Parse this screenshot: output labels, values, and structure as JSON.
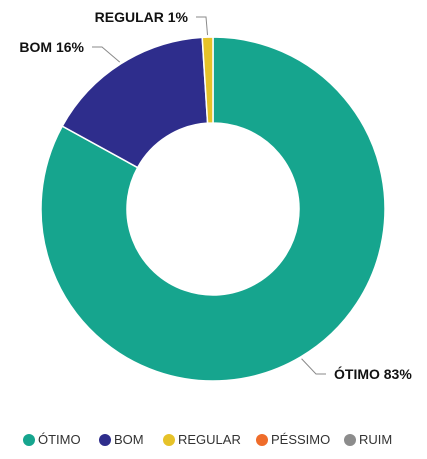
{
  "chart_data": {
    "type": "pie",
    "donut": true,
    "categories": [
      "ÓTIMO",
      "BOM",
      "REGULAR",
      "PÉSSIMO",
      "RUIM"
    ],
    "values": [
      83,
      16,
      1,
      0,
      0
    ],
    "colors": [
      "#16a58e",
      "#2e2d8c",
      "#e6c229",
      "#ef6c2a",
      "#8c8c8c"
    ],
    "slice_labels": [
      "ÓTIMO 83%",
      "BOM 16%",
      "REGULAR 1%",
      "",
      ""
    ],
    "legend": {
      "position": "bottom",
      "items": [
        "ÓTIMO",
        "BOM",
        "REGULAR",
        "PÉSSIMO",
        "RUIM"
      ]
    },
    "title": ""
  }
}
